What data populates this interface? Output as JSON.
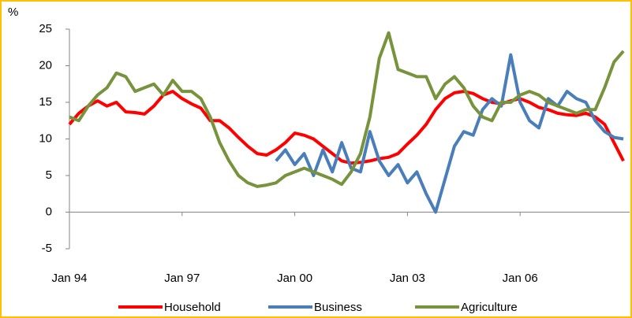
{
  "chart_data": {
    "type": "line",
    "y_unit": "%",
    "x": [
      "1994-01",
      "1994-04",
      "1994-07",
      "1994-10",
      "1995-01",
      "1995-04",
      "1995-07",
      "1995-10",
      "1996-01",
      "1996-04",
      "1996-07",
      "1996-10",
      "1997-01",
      "1997-04",
      "1997-07",
      "1997-10",
      "1998-01",
      "1998-04",
      "1998-07",
      "1998-10",
      "1999-01",
      "1999-04",
      "1999-07",
      "1999-10",
      "2000-01",
      "2000-04",
      "2000-07",
      "2000-10",
      "2001-01",
      "2001-04",
      "2001-07",
      "2001-10",
      "2002-01",
      "2002-04",
      "2002-07",
      "2002-10",
      "2003-01",
      "2003-04",
      "2003-07",
      "2003-10",
      "2004-01",
      "2004-04",
      "2004-07",
      "2004-10",
      "2005-01",
      "2005-04",
      "2005-07",
      "2005-10",
      "2006-01",
      "2006-04",
      "2006-07",
      "2006-10",
      "2007-01",
      "2007-04",
      "2007-07",
      "2007-10",
      "2008-01",
      "2008-04",
      "2008-07",
      "2008-10"
    ],
    "series": [
      {
        "name": "Household",
        "color": "#ff0000",
        "values": [
          12,
          13.5,
          14.5,
          15.2,
          14.5,
          15,
          13.7,
          13.6,
          13.4,
          14.5,
          16,
          16.5,
          15.5,
          14.8,
          14.2,
          12.5,
          12.5,
          11.5,
          10.2,
          9,
          8,
          7.8,
          8.5,
          9.5,
          10.8,
          10.5,
          10,
          9,
          8,
          7,
          6.7,
          6.8,
          7,
          7.3,
          7.5,
          8,
          9.3,
          10.5,
          12,
          14,
          15.5,
          16.3,
          16.5,
          16.2,
          15.5,
          15,
          14.8,
          15.2,
          15.5,
          15,
          14.3,
          14,
          13.5,
          13.3,
          13.2,
          13.5,
          13,
          12,
          9.5,
          7
        ]
      },
      {
        "name": "Business",
        "color": "#4a7ebb",
        "values": [
          null,
          null,
          null,
          null,
          null,
          null,
          null,
          null,
          null,
          null,
          null,
          null,
          null,
          null,
          null,
          null,
          null,
          null,
          null,
          null,
          null,
          null,
          7,
          8.5,
          6.5,
          8,
          5,
          8.5,
          5.5,
          9.5,
          6,
          5.5,
          11,
          7,
          5,
          6.5,
          4,
          5.5,
          2.5,
          0,
          4.5,
          9,
          11,
          10.5,
          14,
          15.5,
          14.5,
          21.5,
          15,
          12.5,
          11.5,
          15.5,
          14.5,
          16.5,
          15.5,
          15,
          12.5,
          11,
          10.2,
          10
        ]
      },
      {
        "name": "Agriculture",
        "color": "#77933c",
        "values": [
          13,
          12.5,
          14.5,
          16,
          17,
          19,
          18.5,
          16.5,
          17,
          17.5,
          16,
          18,
          16.5,
          16.5,
          15.5,
          13,
          9.5,
          7,
          5,
          4,
          3.5,
          3.7,
          4,
          5,
          5.5,
          6,
          5.5,
          5,
          4.5,
          3.8,
          5.5,
          8,
          13,
          21,
          24.5,
          19.5,
          19,
          18.5,
          18.5,
          15.5,
          17.5,
          18.5,
          17,
          14.5,
          13,
          12.5,
          15,
          15,
          16,
          16.5,
          16,
          15,
          14.5,
          14,
          13.5,
          14,
          14,
          17,
          20.5,
          22
        ]
      }
    ],
    "xlim": [
      "1994-01",
      "2008-12"
    ],
    "xticks": [
      {
        "value": "1994-01",
        "label": "Jan 94"
      },
      {
        "value": "1997-01",
        "label": "Jan 97"
      },
      {
        "value": "2000-01",
        "label": "Jan 00"
      },
      {
        "value": "2003-01",
        "label": "Jan 03"
      },
      {
        "value": "2006-01",
        "label": "Jan 06"
      }
    ],
    "ylim": [
      -5,
      25
    ],
    "yticks": [
      -5,
      0,
      5,
      10,
      15,
      20,
      25
    ],
    "grid": false,
    "legend": "bottom"
  }
}
